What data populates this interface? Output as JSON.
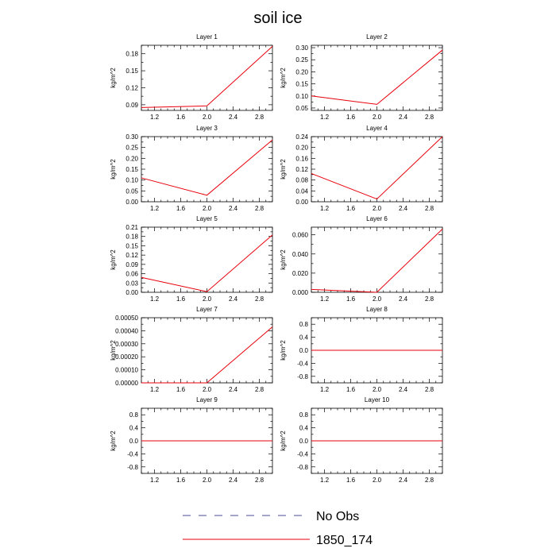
{
  "figure": {
    "title": "soil ice",
    "legend": [
      {
        "label": "No Obs",
        "color": "#4a4a9a",
        "style": "dashed"
      },
      {
        "label": "1850_174",
        "color": "#e8000b",
        "style": "solid"
      }
    ]
  },
  "chart_data": [
    {
      "type": "line",
      "title": "Layer 1",
      "ylabel": "kg/m^2",
      "xlim": [
        1.0,
        3.0
      ],
      "ylim": [
        0.08,
        0.195
      ],
      "xticks": [
        1.2,
        1.6,
        2.0,
        2.4,
        2.8
      ],
      "xticklabels": [
        "1.2",
        "1.6",
        "2.0",
        "2.4",
        "2.8"
      ],
      "yticks": [
        0.09,
        0.12,
        0.15,
        0.18
      ],
      "yticklabels": [
        "0.09",
        "0.12",
        "0.15",
        "0.18"
      ],
      "series": [
        {
          "name": "1850_174",
          "x": [
            1.0,
            2.0,
            3.0
          ],
          "y": [
            0.085,
            0.088,
            0.193
          ]
        }
      ]
    },
    {
      "type": "line",
      "title": "Layer 2",
      "ylabel": "kg/m^2",
      "xlim": [
        1.0,
        3.0
      ],
      "ylim": [
        0.04,
        0.31
      ],
      "xticks": [
        1.2,
        1.6,
        2.0,
        2.4,
        2.8
      ],
      "xticklabels": [
        "1.2",
        "1.6",
        "2.0",
        "2.4",
        "2.8"
      ],
      "yticks": [
        0.05,
        0.1,
        0.15,
        0.2,
        0.25,
        0.3
      ],
      "yticklabels": [
        "0.05",
        "0.10",
        "0.15",
        "0.20",
        "0.25",
        "0.30"
      ],
      "series": [
        {
          "name": "1850_174",
          "x": [
            1.0,
            2.0,
            3.0
          ],
          "y": [
            0.1,
            0.065,
            0.29
          ]
        }
      ]
    },
    {
      "type": "line",
      "title": "Layer 3",
      "ylabel": "kg/m^2",
      "xlim": [
        1.0,
        3.0
      ],
      "ylim": [
        0.0,
        0.3
      ],
      "xticks": [
        1.2,
        1.6,
        2.0,
        2.4,
        2.8
      ],
      "xticklabels": [
        "1.2",
        "1.6",
        "2.0",
        "2.4",
        "2.8"
      ],
      "yticks": [
        0.0,
        0.05,
        0.1,
        0.15,
        0.2,
        0.25,
        0.3
      ],
      "yticklabels": [
        "0.00",
        "0.05",
        "0.10",
        "0.15",
        "0.20",
        "0.25",
        "0.30"
      ],
      "series": [
        {
          "name": "1850_174",
          "x": [
            1.0,
            2.0,
            3.0
          ],
          "y": [
            0.11,
            0.03,
            0.285
          ]
        }
      ]
    },
    {
      "type": "line",
      "title": "Layer 4",
      "ylabel": "kg/m^2",
      "xlim": [
        1.0,
        3.0
      ],
      "ylim": [
        0.0,
        0.24
      ],
      "xticks": [
        1.2,
        1.6,
        2.0,
        2.4,
        2.8
      ],
      "xticklabels": [
        "1.2",
        "1.6",
        "2.0",
        "2.4",
        "2.8"
      ],
      "yticks": [
        0.0,
        0.04,
        0.08,
        0.12,
        0.16,
        0.2,
        0.24
      ],
      "yticklabels": [
        "0.00",
        "0.04",
        "0.08",
        "0.12",
        "0.16",
        "0.20",
        "0.24"
      ],
      "series": [
        {
          "name": "1850_174",
          "x": [
            1.0,
            2.0,
            3.0
          ],
          "y": [
            0.104,
            0.01,
            0.24
          ]
        }
      ]
    },
    {
      "type": "line",
      "title": "Layer 5",
      "ylabel": "kg/m^2",
      "xlim": [
        1.0,
        3.0
      ],
      "ylim": [
        0.0,
        0.21
      ],
      "xticks": [
        1.2,
        1.6,
        2.0,
        2.4,
        2.8
      ],
      "xticklabels": [
        "1.2",
        "1.6",
        "2.0",
        "2.4",
        "2.8"
      ],
      "yticks": [
        0.0,
        0.03,
        0.06,
        0.09,
        0.12,
        0.15,
        0.18,
        0.21
      ],
      "yticklabels": [
        "0.00",
        "0.03",
        "0.06",
        "0.09",
        "0.12",
        "0.15",
        "0.18",
        "0.21"
      ],
      "series": [
        {
          "name": "1850_174",
          "x": [
            1.0,
            2.0,
            3.0
          ],
          "y": [
            0.048,
            0.002,
            0.185
          ]
        }
      ]
    },
    {
      "type": "line",
      "title": "Layer 6",
      "ylabel": "kg/m^2",
      "xlim": [
        1.0,
        3.0
      ],
      "ylim": [
        0.0,
        0.068
      ],
      "xticks": [
        1.2,
        1.6,
        2.0,
        2.4,
        2.8
      ],
      "xticklabels": [
        "1.2",
        "1.6",
        "2.0",
        "2.4",
        "2.8"
      ],
      "yticks": [
        0.0,
        0.02,
        0.04,
        0.06
      ],
      "yticklabels": [
        "0.000",
        "0.020",
        "0.040",
        "0.060"
      ],
      "series": [
        {
          "name": "1850_174",
          "x": [
            1.0,
            2.0,
            3.0
          ],
          "y": [
            0.003,
            0.0,
            0.066
          ]
        }
      ]
    },
    {
      "type": "line",
      "title": "Layer 7",
      "ylabel": "kg/m^2",
      "xlim": [
        1.0,
        3.0
      ],
      "ylim": [
        0.0,
        0.0005
      ],
      "xticks": [
        1.2,
        1.6,
        2.0,
        2.4,
        2.8
      ],
      "xticklabels": [
        "1.2",
        "1.6",
        "2.0",
        "2.4",
        "2.8"
      ],
      "yticks": [
        0.0,
        0.0001,
        0.0002,
        0.0003,
        0.0004,
        0.0005
      ],
      "yticklabels": [
        "0.00000",
        "0.00010",
        "0.00020",
        "0.00030",
        "0.00040",
        "0.00050"
      ],
      "series": [
        {
          "name": "1850_174",
          "x": [
            1.0,
            2.0,
            3.0
          ],
          "y": [
            0.0,
            0.0,
            0.00043
          ]
        }
      ]
    },
    {
      "type": "line",
      "title": "Layer 8",
      "ylabel": "kg/m^2",
      "xlim": [
        1.0,
        3.0
      ],
      "ylim": [
        -1.0,
        1.0
      ],
      "xticks": [
        1.2,
        1.6,
        2.0,
        2.4,
        2.8
      ],
      "xticklabels": [
        "1.2",
        "1.6",
        "2.0",
        "2.4",
        "2.8"
      ],
      "yticks": [
        -0.8,
        -0.4,
        0.0,
        0.4,
        0.8
      ],
      "yticklabels": [
        "-0.8",
        "-0.4",
        "0.0",
        "0.4",
        "0.8"
      ],
      "series": [
        {
          "name": "1850_174",
          "x": [
            1.0,
            2.0,
            3.0
          ],
          "y": [
            0.0,
            0.0,
            0.0
          ]
        }
      ]
    },
    {
      "type": "line",
      "title": "Layer 9",
      "ylabel": "kg/m^2",
      "xlim": [
        1.0,
        3.0
      ],
      "ylim": [
        -1.0,
        1.0
      ],
      "xticks": [
        1.2,
        1.6,
        2.0,
        2.4,
        2.8
      ],
      "xticklabels": [
        "1.2",
        "1.6",
        "2.0",
        "2.4",
        "2.8"
      ],
      "yticks": [
        -0.8,
        -0.4,
        0.0,
        0.4,
        0.8
      ],
      "yticklabels": [
        "-0.8",
        "-0.4",
        "0.0",
        "0.4",
        "0.8"
      ],
      "series": [
        {
          "name": "1850_174",
          "x": [
            1.0,
            2.0,
            3.0
          ],
          "y": [
            0.0,
            0.0,
            0.0
          ]
        }
      ]
    },
    {
      "type": "line",
      "title": "Layer 10",
      "ylabel": "kg/m^2",
      "xlim": [
        1.0,
        3.0
      ],
      "ylim": [
        -1.0,
        1.0
      ],
      "xticks": [
        1.2,
        1.6,
        2.0,
        2.4,
        2.8
      ],
      "xticklabels": [
        "1.2",
        "1.6",
        "2.0",
        "2.4",
        "2.8"
      ],
      "yticks": [
        -0.8,
        -0.4,
        0.0,
        0.4,
        0.8
      ],
      "yticklabels": [
        "-0.8",
        "-0.4",
        "0.0",
        "0.4",
        "0.8"
      ],
      "series": [
        {
          "name": "1850_174",
          "x": [
            1.0,
            2.0,
            3.0
          ],
          "y": [
            0.0,
            0.0,
            0.0
          ]
        }
      ]
    }
  ]
}
